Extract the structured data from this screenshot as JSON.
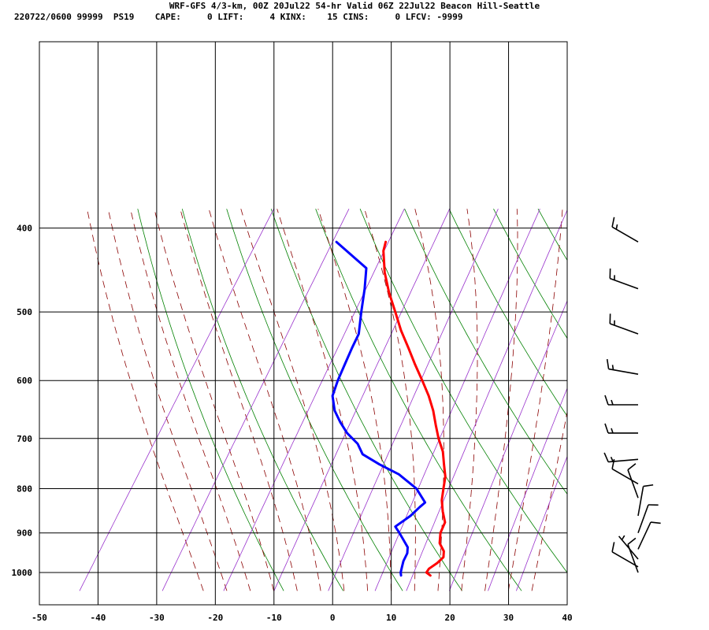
{
  "header": {
    "title": "WRF-GFS 4/3-km, 00Z 20Jul22 54-hr Valid 06Z 22Jul22 Beacon Hill-Seattle",
    "stats": "220722/0600 99999  PS19    CAPE:     0 LIFT:     4 KINX:    15 CINS:     0 LFCV: -9999"
  },
  "chart_data": {
    "type": "line",
    "subtype": "skew-T log-P sounding",
    "title": "WRF-GFS 4/3-km, 00Z 20Jul22 54-hr Valid 06Z 22Jul22 Beacon Hill-Seattle",
    "xlabel": "",
    "ylabel": "",
    "xlim": [
      -50,
      40
    ],
    "ylim": [
      1040,
      400
    ],
    "y_scale": "log",
    "x_ticks": [
      -50,
      -40,
      -30,
      -20,
      -10,
      0,
      10,
      20,
      30,
      40
    ],
    "y_ticks": [
      400,
      500,
      600,
      700,
      800,
      900,
      1000
    ],
    "grid": true,
    "series": [
      {
        "color": "#ff0000",
        "pressure": [
          1008,
          1000,
          990,
          975,
          960,
          945,
          925,
          900,
          875,
          850,
          825,
          800,
          775,
          750,
          725,
          700,
          675,
          650,
          625,
          600,
          575,
          550,
          525,
          500,
          475,
          450,
          425,
          415
        ],
        "values": [
          17.0,
          16.0,
          16.0,
          16.8,
          17.2,
          16.6,
          15.0,
          14.0,
          13.6,
          12.0,
          10.6,
          9.6,
          8.6,
          7.0,
          5.4,
          3.2,
          1.2,
          -0.8,
          -3.2,
          -6.0,
          -9.0,
          -12.0,
          -15.2,
          -18.2,
          -21.4,
          -24.4,
          -27.0,
          -27.6
        ]
      },
      {
        "color": "#0000ff",
        "pressure": [
          1008,
          1000,
          985,
          970,
          950,
          935,
          900,
          885,
          860,
          840,
          830,
          800,
          770,
          750,
          730,
          710,
          690,
          670,
          650,
          625,
          600,
          575,
          550,
          530,
          500,
          470,
          445,
          415
        ],
        "values": [
          12.0,
          11.6,
          11.2,
          10.8,
          10.6,
          10.0,
          7.0,
          5.6,
          7.0,
          7.6,
          8.0,
          5.0,
          0.4,
          -4.0,
          -8.0,
          -10.0,
          -13.0,
          -15.4,
          -17.6,
          -19.6,
          -20.4,
          -21.0,
          -21.6,
          -22.0,
          -24.0,
          -26.0,
          -28.0,
          -36.0
        ]
      }
    ],
    "wind_barbs": [
      {
        "pressure": 415,
        "direction": 300,
        "speed": 15
      },
      {
        "pressure": 470,
        "direction": 290,
        "speed": 15
      },
      {
        "pressure": 530,
        "direction": 290,
        "speed": 15
      },
      {
        "pressure": 590,
        "direction": 280,
        "speed": 15
      },
      {
        "pressure": 640,
        "direction": 270,
        "speed": 15
      },
      {
        "pressure": 690,
        "direction": 270,
        "speed": 15
      },
      {
        "pressure": 740,
        "direction": 265,
        "speed": 15
      },
      {
        "pressure": 790,
        "direction": 300,
        "speed": 10
      },
      {
        "pressure": 820,
        "direction": 340,
        "speed": 10
      },
      {
        "pressure": 860,
        "direction": 10,
        "speed": 10
      },
      {
        "pressure": 900,
        "direction": 20,
        "speed": 10
      },
      {
        "pressure": 940,
        "direction": 25,
        "speed": 10
      },
      {
        "pressure": 965,
        "direction": 320,
        "speed": 5
      },
      {
        "pressure": 985,
        "direction": 300,
        "speed": 10
      },
      {
        "pressure": 1000,
        "direction": 340,
        "speed": 10
      }
    ],
    "colors": {
      "dry_adiabat": "#008000",
      "moist_adiabat": "#8b0000",
      "mixing_ratio": "#9932cc",
      "grid": "#000000"
    }
  }
}
